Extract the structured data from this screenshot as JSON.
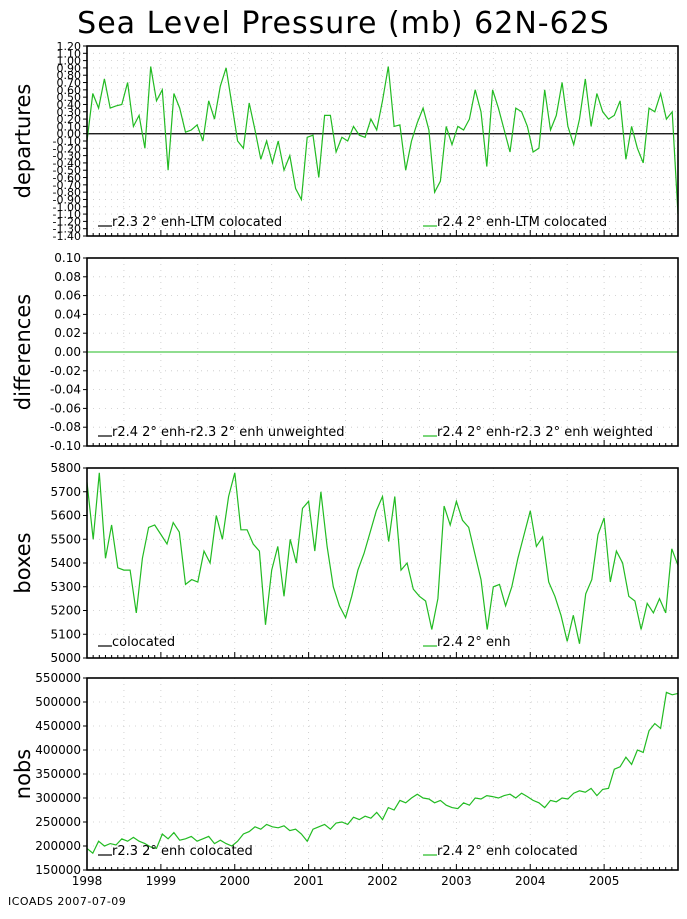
{
  "title": "Sea Level Pressure (mb) 62N-62S",
  "footer": "ICOADS 2007-07-09",
  "colors": {
    "r23": "#000000",
    "r24": "#22bb22"
  },
  "chart_data": [
    {
      "type": "line",
      "ylabel": "departures",
      "ylim": [
        -1.4,
        1.2
      ],
      "yticks": [
        "1.20",
        "1.10",
        "1.00",
        "0.90",
        "0.80",
        "0.70",
        "0.60",
        "0.50",
        "0.40",
        "0.30",
        "0.20",
        "0.10",
        "0.00",
        "-0.10",
        "-0.20",
        "-0.30",
        "-0.40",
        "-0.50",
        "-0.60",
        "-0.70",
        "-0.80",
        "-0.90",
        "-1.00",
        "-1.10",
        "-1.20",
        "-1.30",
        "-1.40"
      ],
      "series": [
        {
          "name": "r2.3 2° enh-LTM colocated",
          "values": [
            0
          ]
        },
        {
          "name": "r2.4 2° enh-LTM colocated",
          "values": [
            -0.1,
            0.55,
            0.35,
            0.75,
            0.35,
            0.38,
            0.4,
            0.7,
            0.1,
            0.25,
            -0.2,
            0.92,
            0.45,
            0.6,
            -0.5,
            0.55,
            0.35,
            0.02,
            0.05,
            0.12,
            -0.1,
            0.45,
            0.2,
            0.65,
            0.9,
            0.4,
            -0.1,
            -0.2,
            0.42,
            0.05,
            -0.35,
            -0.1,
            -0.4,
            -0.1,
            -0.5,
            -0.3,
            -0.75,
            -0.9,
            -0.05,
            -0.02,
            -0.6,
            0.25,
            0.25,
            -0.25,
            -0.05,
            -0.1,
            0.1,
            -0.02,
            -0.05,
            0.2,
            0.05,
            0.45,
            0.92,
            0.1,
            0.12,
            -0.5,
            -0.1,
            0.15,
            0.35,
            0.05,
            -0.8,
            -0.65,
            0.1,
            -0.15,
            0.1,
            0.05,
            0.2,
            0.6,
            0.3,
            -0.45,
            0.6,
            0.35,
            0.05,
            -0.25,
            0.35,
            0.3,
            0.1,
            -0.25,
            -0.2,
            0.6,
            0.05,
            0.25,
            0.7,
            0.1,
            -0.15,
            0.2,
            0.75,
            0.1,
            0.55,
            0.3,
            0.2,
            0.25,
            0.45,
            -0.35,
            0.1,
            -0.2,
            -0.4,
            0.35,
            0.3,
            0.55,
            0.2,
            0.3,
            -1.1
          ]
        }
      ]
    },
    {
      "type": "line",
      "ylabel": "differences",
      "ylim": [
        -0.1,
        0.1
      ],
      "yticks": [
        "0.10",
        "0.08",
        "0.06",
        "0.04",
        "0.02",
        "0.00",
        "-0.02",
        "-0.04",
        "-0.06",
        "-0.08",
        "-0.10"
      ],
      "series": [
        {
          "name": "r2.4 2° enh-r2.3 2° enh unweighted",
          "values": [
            0
          ]
        },
        {
          "name": "r2.4 2° enh-r2.3 2° enh weighted",
          "values": [
            0
          ]
        }
      ]
    },
    {
      "type": "line",
      "ylabel": "boxes",
      "ylim": [
        5000,
        5800
      ],
      "yticks": [
        "5800",
        "5700",
        "5600",
        "5500",
        "5400",
        "5300",
        "5200",
        "5100",
        "5000"
      ],
      "series": [
        {
          "name": "colocated",
          "values": []
        },
        {
          "name": "r2.4 2° enh",
          "values": [
            5740,
            5500,
            5780,
            5420,
            5560,
            5380,
            5370,
            5370,
            5190,
            5420,
            5550,
            5560,
            5520,
            5480,
            5570,
            5530,
            5310,
            5330,
            5320,
            5450,
            5400,
            5600,
            5500,
            5680,
            5780,
            5540,
            5540,
            5480,
            5450,
            5140,
            5370,
            5470,
            5260,
            5500,
            5400,
            5630,
            5660,
            5450,
            5700,
            5470,
            5300,
            5220,
            5170,
            5260,
            5370,
            5440,
            5530,
            5620,
            5680,
            5490,
            5680,
            5370,
            5400,
            5290,
            5260,
            5240,
            5120,
            5250,
            5640,
            5560,
            5660,
            5580,
            5550,
            5440,
            5330,
            5120,
            5300,
            5310,
            5220,
            5300,
            5420,
            5520,
            5620,
            5470,
            5510,
            5320,
            5260,
            5180,
            5070,
            5180,
            5060,
            5270,
            5330,
            5520,
            5590,
            5320,
            5450,
            5400,
            5260,
            5240,
            5120,
            5230,
            5190,
            5250,
            5190,
            5460,
            5390
          ]
        }
      ]
    },
    {
      "type": "line",
      "ylabel": "nobs",
      "ylim": [
        150000,
        550000
      ],
      "yticks": [
        "550000",
        "500000",
        "450000",
        "400000",
        "350000",
        "300000",
        "250000",
        "200000",
        "150000"
      ],
      "series": [
        {
          "name": "r2.3 2° enh colocated",
          "values": []
        },
        {
          "name": "r2.4 2° enh colocated",
          "values": [
            195000,
            185000,
            210000,
            200000,
            205000,
            202000,
            215000,
            210000,
            218000,
            210000,
            205000,
            198000,
            195000,
            225000,
            215000,
            228000,
            212000,
            215000,
            220000,
            210000,
            215000,
            220000,
            205000,
            212000,
            205000,
            200000,
            210000,
            225000,
            230000,
            240000,
            235000,
            245000,
            240000,
            238000,
            242000,
            232000,
            235000,
            225000,
            210000,
            235000,
            240000,
            245000,
            235000,
            248000,
            250000,
            245000,
            260000,
            255000,
            262000,
            258000,
            270000,
            255000,
            280000,
            275000,
            295000,
            290000,
            300000,
            308000,
            300000,
            298000,
            290000,
            295000,
            285000,
            280000,
            278000,
            290000,
            285000,
            300000,
            298000,
            305000,
            303000,
            300000,
            305000,
            308000,
            300000,
            310000,
            303000,
            295000,
            290000,
            280000,
            295000,
            292000,
            300000,
            298000,
            310000,
            315000,
            312000,
            320000,
            305000,
            318000,
            320000,
            360000,
            365000,
            385000,
            370000,
            400000,
            395000,
            440000,
            455000,
            445000,
            520000,
            515000,
            518000
          ]
        }
      ]
    }
  ],
  "x_axis": {
    "range": [
      1998,
      2006
    ],
    "tick_labels": [
      "1998",
      "1999",
      "2000",
      "2001",
      "2002",
      "2003",
      "2004",
      "2005"
    ]
  }
}
